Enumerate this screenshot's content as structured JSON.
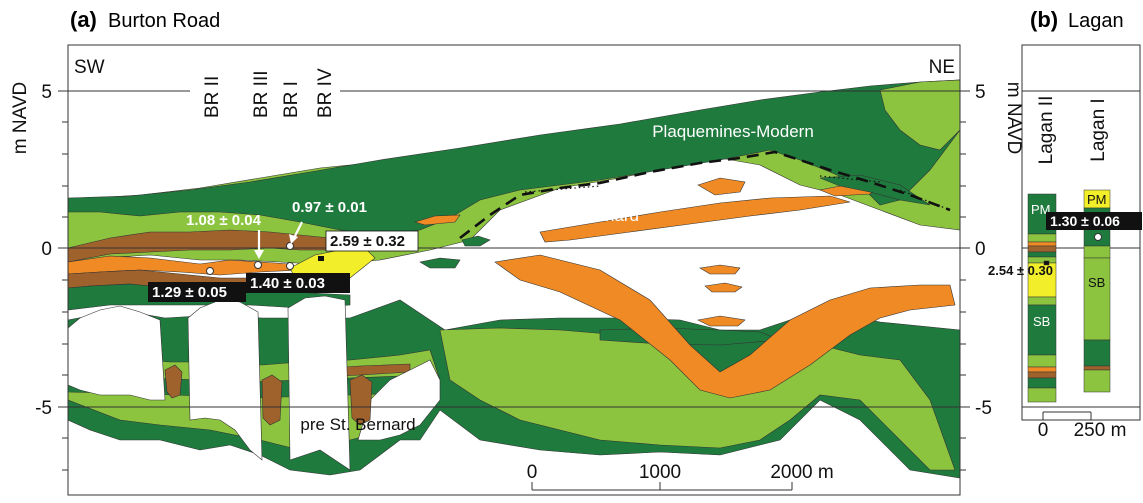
{
  "panel_a": {
    "letter": "(a)",
    "title": "Burton Road",
    "y_axis_label": "m NAVD",
    "y_ticks": [
      "5",
      "0",
      "-5"
    ],
    "dir_left": "SW",
    "dir_right": "NE",
    "cores": [
      "BR II",
      "BR III",
      "BR I",
      "BR IV"
    ],
    "unit_labels": {
      "plaquemines": "Plaquemines-Modern",
      "st_bernard": "St. Bernard",
      "pre_st_bernard": "pre St. Bernard"
    },
    "ages": [
      "1.08 ± 0.04",
      "0.97 ± 0.01",
      "2.59 ± 0.32",
      "1.29 ± 0.05",
      "1.40 ± 0.03"
    ],
    "scale_ticks": [
      "0",
      "1000",
      "2000 m"
    ]
  },
  "panel_b": {
    "letter": "(b)",
    "title": "Lagan",
    "y_axis_label": "m NAVD",
    "y_ticks": [
      "5",
      "0",
      "-5"
    ],
    "cores": [
      "Lagan II",
      "Lagan I"
    ],
    "unit_labels": {
      "pm1": "PM",
      "pm2": "PM",
      "sb1": "SB",
      "sb2": "SB"
    },
    "ages": [
      "1.30 ± 0.06",
      "2.54 ± 0.30"
    ],
    "scale_ticks": [
      "0",
      "250 m"
    ]
  },
  "colors": {
    "dark_green": "#1f7a3e",
    "light_green": "#8cc43f",
    "orange": "#f08a24",
    "brown": "#a0622c",
    "yellow": "#f3ee2a"
  }
}
